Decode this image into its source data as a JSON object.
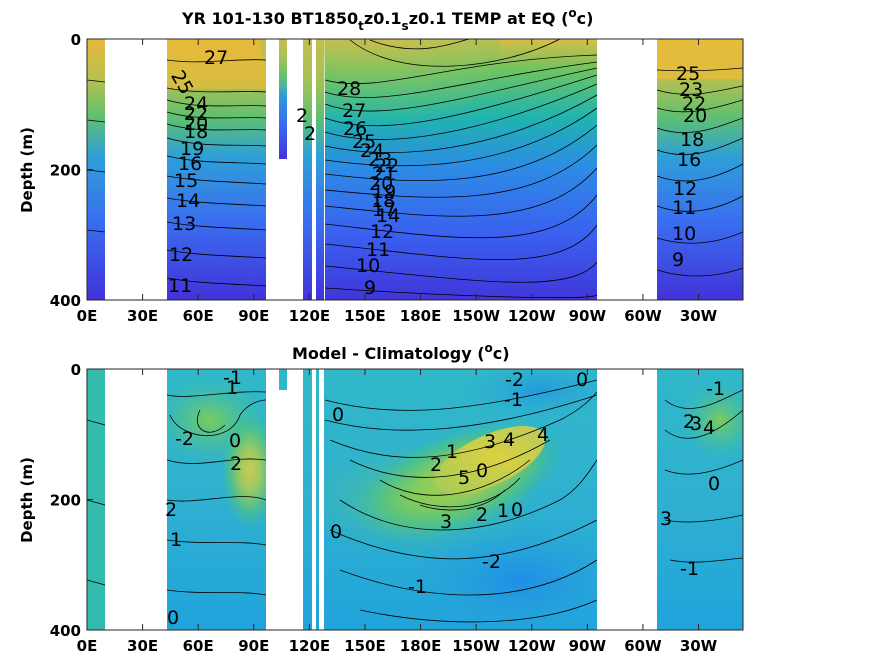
{
  "chart_data": [
    {
      "type": "contour",
      "title": "YR 101-130 BT1850_t z0.1_s z0.1 TEMP at EQ (°c)",
      "title_parts": [
        "YR 101-130 BT1850",
        "t",
        "z0.1",
        "s",
        "z0.1 TEMP at EQ (",
        "o",
        "c)"
      ],
      "ylabel": "Depth (m)",
      "xlabel": "",
      "x_ticks": [
        "0E",
        "30E",
        "60E",
        "90E",
        "120E",
        "150E",
        "180E",
        "150W",
        "120W",
        "90W",
        "60W",
        "30W"
      ],
      "y_ticks": [
        "0",
        "200",
        "400"
      ],
      "ylim": [
        400,
        0
      ],
      "colormap": "parula",
      "colors": {
        "warm": "#f5bd3a",
        "mid": "#5fc46c",
        "cool": "#3e6ef5",
        "deep": "#3f34d8"
      },
      "contour_labels": [
        "27",
        "26",
        "25",
        "24",
        "23",
        "22",
        "21",
        "20",
        "19",
        "18",
        "17",
        "16",
        "15",
        "14",
        "13",
        "12",
        "11",
        "10",
        "9",
        "28"
      ]
    },
    {
      "type": "contour",
      "title": "Model - Climatology (°c)",
      "title_parts": [
        "Model - Climatology (",
        "o",
        "c)"
      ],
      "ylabel": "Depth (m)",
      "xlabel": "",
      "x_ticks": [
        "0E",
        "30E",
        "60E",
        "90E",
        "120E",
        "150E",
        "180E",
        "150W",
        "120W",
        "90W",
        "60W",
        "30W"
      ],
      "y_ticks": [
        "0",
        "200",
        "400"
      ],
      "ylim": [
        400,
        0
      ],
      "colormap": "parula",
      "colors": {
        "pos": "#e8d040",
        "mid": "#40c4a8",
        "neg": "#2a9ee0"
      },
      "contour_labels": [
        "-2",
        "-1",
        "0",
        "1",
        "2",
        "3",
        "4",
        "5",
        "-1",
        "-2",
        "0",
        "-1",
        "-2",
        "1",
        "0",
        "2",
        "3",
        "4",
        "-1",
        "0",
        "1",
        "2",
        "-2",
        "0",
        "-3",
        "-1",
        "0",
        "1",
        "2",
        "3",
        "4",
        "5"
      ]
    }
  ]
}
